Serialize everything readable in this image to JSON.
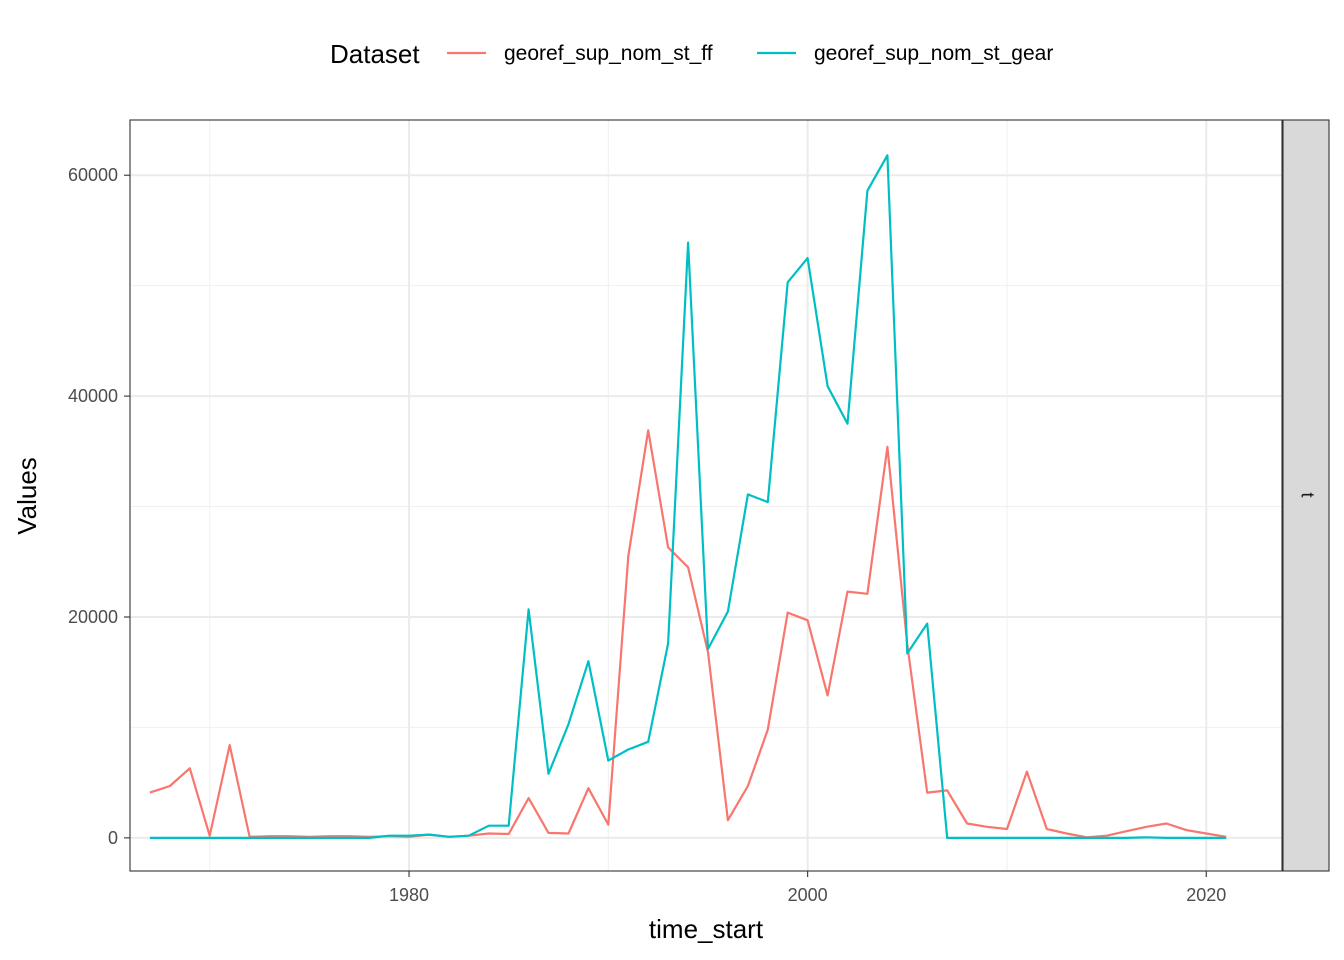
{
  "chart_data": {
    "type": "line",
    "xlabel": "time_start",
    "ylabel": "Values",
    "xlim": [
      1966.0,
      2023.8
    ],
    "ylim": [
      -3000,
      65000
    ],
    "x_ticks": [
      1980,
      2000,
      2020
    ],
    "x_tick_labels": [
      "1980",
      "2000",
      "2020"
    ],
    "y_ticks": [
      0,
      20000,
      40000,
      60000
    ],
    "y_tick_labels": [
      "0",
      "20000",
      "40000",
      "60000"
    ],
    "grid": true,
    "facet_label": "t",
    "legend": {
      "title": "Dataset",
      "position": "top"
    },
    "x": [
      1967,
      1968,
      1969,
      1970,
      1971,
      1972,
      1973,
      1974,
      1975,
      1976,
      1977,
      1978,
      1979,
      1980,
      1981,
      1982,
      1983,
      1984,
      1985,
      1986,
      1987,
      1988,
      1989,
      1990,
      1991,
      1992,
      1993,
      1994,
      1995,
      1996,
      1997,
      1998,
      1999,
      2000,
      2001,
      2002,
      2003,
      2004,
      2005,
      2006,
      2007,
      2008,
      2009,
      2010,
      2011,
      2012,
      2013,
      2014,
      2015,
      2016,
      2017,
      2018,
      2019,
      2020,
      2021
    ],
    "series": [
      {
        "name": "georef_sup_nom_st_ff",
        "color": "#F8766D",
        "values": [
          4100,
          4700,
          6300,
          200,
          8400,
          100,
          150,
          150,
          100,
          150,
          150,
          100,
          150,
          100,
          300,
          100,
          200,
          400,
          350,
          3600,
          450,
          400,
          4500,
          1200,
          25500,
          36900,
          26300,
          24500,
          16800,
          1600,
          4700,
          9800,
          20400,
          19700,
          12900,
          22300,
          22100,
          35400,
          17500,
          4100,
          4300,
          1300,
          1000,
          800,
          6000,
          800,
          400,
          50,
          200,
          600,
          1000,
          1300,
          700,
          400,
          100
        ]
      },
      {
        "name": "georef_sup_nom_st_gear",
        "color": "#00BFC4",
        "values": [
          0,
          0,
          0,
          0,
          0,
          0,
          0,
          0,
          0,
          0,
          0,
          0,
          200,
          200,
          300,
          100,
          200,
          1100,
          1100,
          20700,
          5800,
          10300,
          16000,
          7000,
          8000,
          8700,
          17600,
          53900,
          17100,
          20500,
          31100,
          30400,
          50300,
          52500,
          40900,
          37500,
          58600,
          61800,
          16700,
          19400,
          0,
          0,
          0,
          0,
          0,
          0,
          0,
          0,
          0,
          0,
          50,
          0,
          0,
          0,
          0
        ]
      }
    ]
  }
}
